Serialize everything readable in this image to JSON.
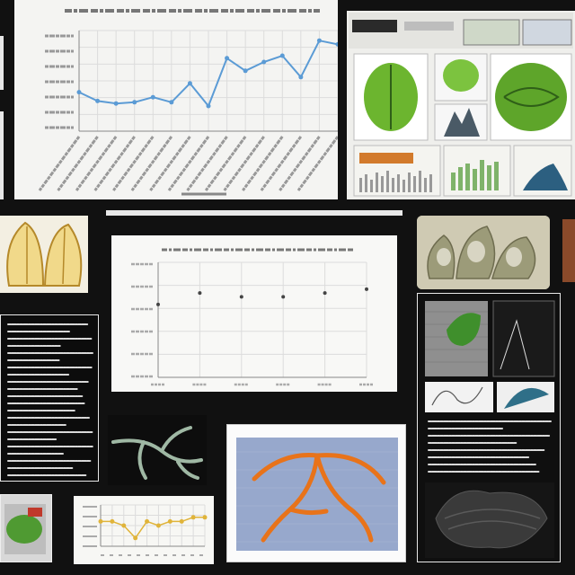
{
  "colors": {
    "background": "#111111",
    "line_series": "#5b9bd5",
    "leaf_green": "#5fa52c",
    "vein_orange": "#e8731a",
    "scatter_dot": "#444444"
  },
  "icons": [
    "leaf-image",
    "plant-tissue-image",
    "root-image",
    "vein-map-image",
    "cross-section-image"
  ],
  "chart_data": [
    {
      "type": "line",
      "x": [
        1,
        2,
        3,
        4,
        5,
        6,
        7,
        8,
        9,
        10,
        11,
        12,
        13,
        14,
        15
      ],
      "series": [
        {
          "values": [
            31,
            24,
            22,
            23,
            27,
            23,
            38,
            20,
            58,
            48,
            55,
            60,
            43,
            72,
            69
          ]
        }
      ],
      "ylim": [
        0,
        80
      ],
      "grid": true
    },
    {
      "type": "scatter",
      "x": [
        1,
        2,
        3,
        4,
        5,
        6
      ],
      "series": [
        {
          "values": [
            38,
            44,
            42,
            42,
            44,
            46
          ]
        }
      ],
      "ylim": [
        0,
        60
      ],
      "grid": true
    },
    {
      "type": "line",
      "x": [
        1,
        2,
        3,
        4,
        5,
        6,
        7,
        8,
        9,
        10
      ],
      "series": [
        {
          "values": [
            6,
            6,
            5,
            2,
            6,
            5,
            6,
            6,
            7,
            7
          ]
        }
      ],
      "ylim": [
        0,
        10
      ],
      "grid": true
    }
  ]
}
